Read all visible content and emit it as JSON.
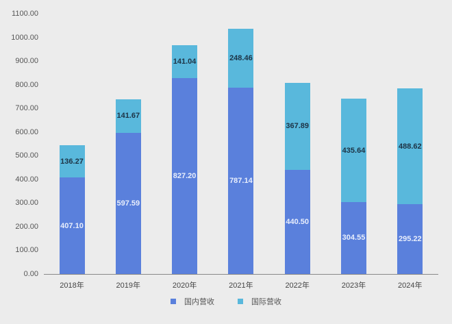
{
  "chart_data": {
    "type": "bar",
    "stacked": true,
    "title": "",
    "xlabel": "",
    "ylabel": "",
    "ylim": [
      0,
      1100
    ],
    "yticks": [
      "0.00",
      "100.00",
      "200.00",
      "300.00",
      "400.00",
      "500.00",
      "600.00",
      "700.00",
      "800.00",
      "900.00",
      "1000.00",
      "1100.00"
    ],
    "categories": [
      "2018年",
      "2019年",
      "2020年",
      "2021年",
      "2022年",
      "2023年",
      "2024年"
    ],
    "series": [
      {
        "name": "国内营收",
        "color": "#5a80dc",
        "values": [
          407.1,
          597.59,
          827.2,
          787.14,
          440.5,
          304.55,
          295.22
        ],
        "labels": [
          "407.10",
          "597.59",
          "827.20",
          "787.14",
          "440.50",
          "304.55",
          "295.22"
        ]
      },
      {
        "name": "国际营收",
        "color": "#59b8dc",
        "values": [
          136.27,
          141.67,
          141.04,
          248.46,
          367.89,
          435.64,
          488.62
        ],
        "labels": [
          "136.27",
          "141.67",
          "141.04",
          "248.46",
          "367.89",
          "435.64",
          "488.62"
        ]
      }
    ],
    "legend_position": "bottom",
    "grid": false
  },
  "legend": {
    "domestic": "国内营收",
    "international": "国际营收"
  }
}
